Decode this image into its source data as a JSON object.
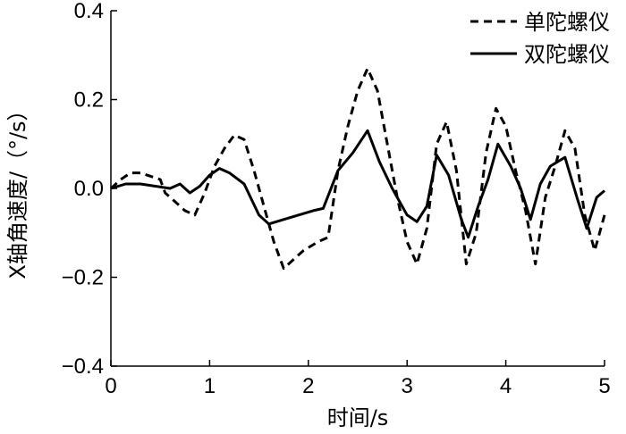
{
  "chart_data": {
    "type": "line",
    "title": "",
    "xlabel": "时间/s",
    "ylabel": "X轴角速度/（°/s）",
    "xlim": [
      0,
      5
    ],
    "ylim": [
      -0.4,
      0.4
    ],
    "xticks": [
      "0",
      "1",
      "2",
      "3",
      "4",
      "5"
    ],
    "yticks": [
      "−0.4",
      "−0.2",
      "0.0",
      "0.2",
      "0.4"
    ],
    "grid": false,
    "legend_position": "top-right",
    "series": [
      {
        "name": "单陀螺仪",
        "style": "dashed",
        "color": "#000000",
        "x": [
          0,
          0.1,
          0.2,
          0.3,
          0.5,
          0.55,
          0.65,
          0.75,
          0.85,
          0.95,
          1.05,
          1.15,
          1.25,
          1.35,
          1.45,
          1.55,
          1.65,
          1.75,
          1.85,
          1.95,
          2.1,
          2.2,
          2.3,
          2.4,
          2.5,
          2.6,
          2.7,
          2.8,
          2.9,
          3.0,
          3.1,
          3.2,
          3.3,
          3.4,
          3.5,
          3.6,
          3.7,
          3.8,
          3.9,
          4.0,
          4.1,
          4.2,
          4.3,
          4.4,
          4.5,
          4.6,
          4.7,
          4.8,
          4.9,
          5.0
        ],
        "y": [
          0.0,
          0.02,
          0.035,
          0.035,
          0.02,
          -0.01,
          -0.03,
          -0.05,
          -0.06,
          -0.01,
          0.05,
          0.09,
          0.12,
          0.11,
          0.04,
          -0.04,
          -0.12,
          -0.18,
          -0.16,
          -0.14,
          -0.12,
          -0.11,
          0.04,
          0.14,
          0.22,
          0.27,
          0.22,
          0.1,
          -0.02,
          -0.12,
          -0.17,
          -0.09,
          0.1,
          0.15,
          0.04,
          -0.17,
          -0.1,
          0.08,
          0.18,
          0.14,
          0.04,
          -0.05,
          -0.17,
          -0.02,
          0.05,
          0.13,
          0.09,
          -0.06,
          -0.14,
          -0.06
        ]
      },
      {
        "name": "双陀螺仪",
        "style": "solid",
        "color": "#000000",
        "x": [
          0,
          0.15,
          0.3,
          0.45,
          0.6,
          0.7,
          0.8,
          0.9,
          1.0,
          1.1,
          1.2,
          1.35,
          1.5,
          1.6,
          1.75,
          1.9,
          2.05,
          2.15,
          2.3,
          2.45,
          2.6,
          2.72,
          2.85,
          3.0,
          3.1,
          3.2,
          3.3,
          3.42,
          3.55,
          3.62,
          3.72,
          3.82,
          3.92,
          4.05,
          4.15,
          4.25,
          4.35,
          4.45,
          4.6,
          4.72,
          4.82,
          4.92,
          5.0
        ],
        "y": [
          0.0,
          0.01,
          0.01,
          0.005,
          0.0,
          0.01,
          -0.01,
          0.005,
          0.03,
          0.045,
          0.035,
          0.01,
          -0.06,
          -0.08,
          -0.07,
          -0.06,
          -0.05,
          -0.045,
          0.04,
          0.08,
          0.13,
          0.06,
          0.0,
          -0.06,
          -0.075,
          -0.04,
          0.075,
          0.03,
          -0.07,
          -0.11,
          -0.04,
          0.02,
          0.1,
          0.05,
          0.0,
          -0.07,
          0.01,
          0.05,
          0.07,
          -0.02,
          -0.09,
          -0.02,
          -0.005
        ]
      }
    ]
  }
}
